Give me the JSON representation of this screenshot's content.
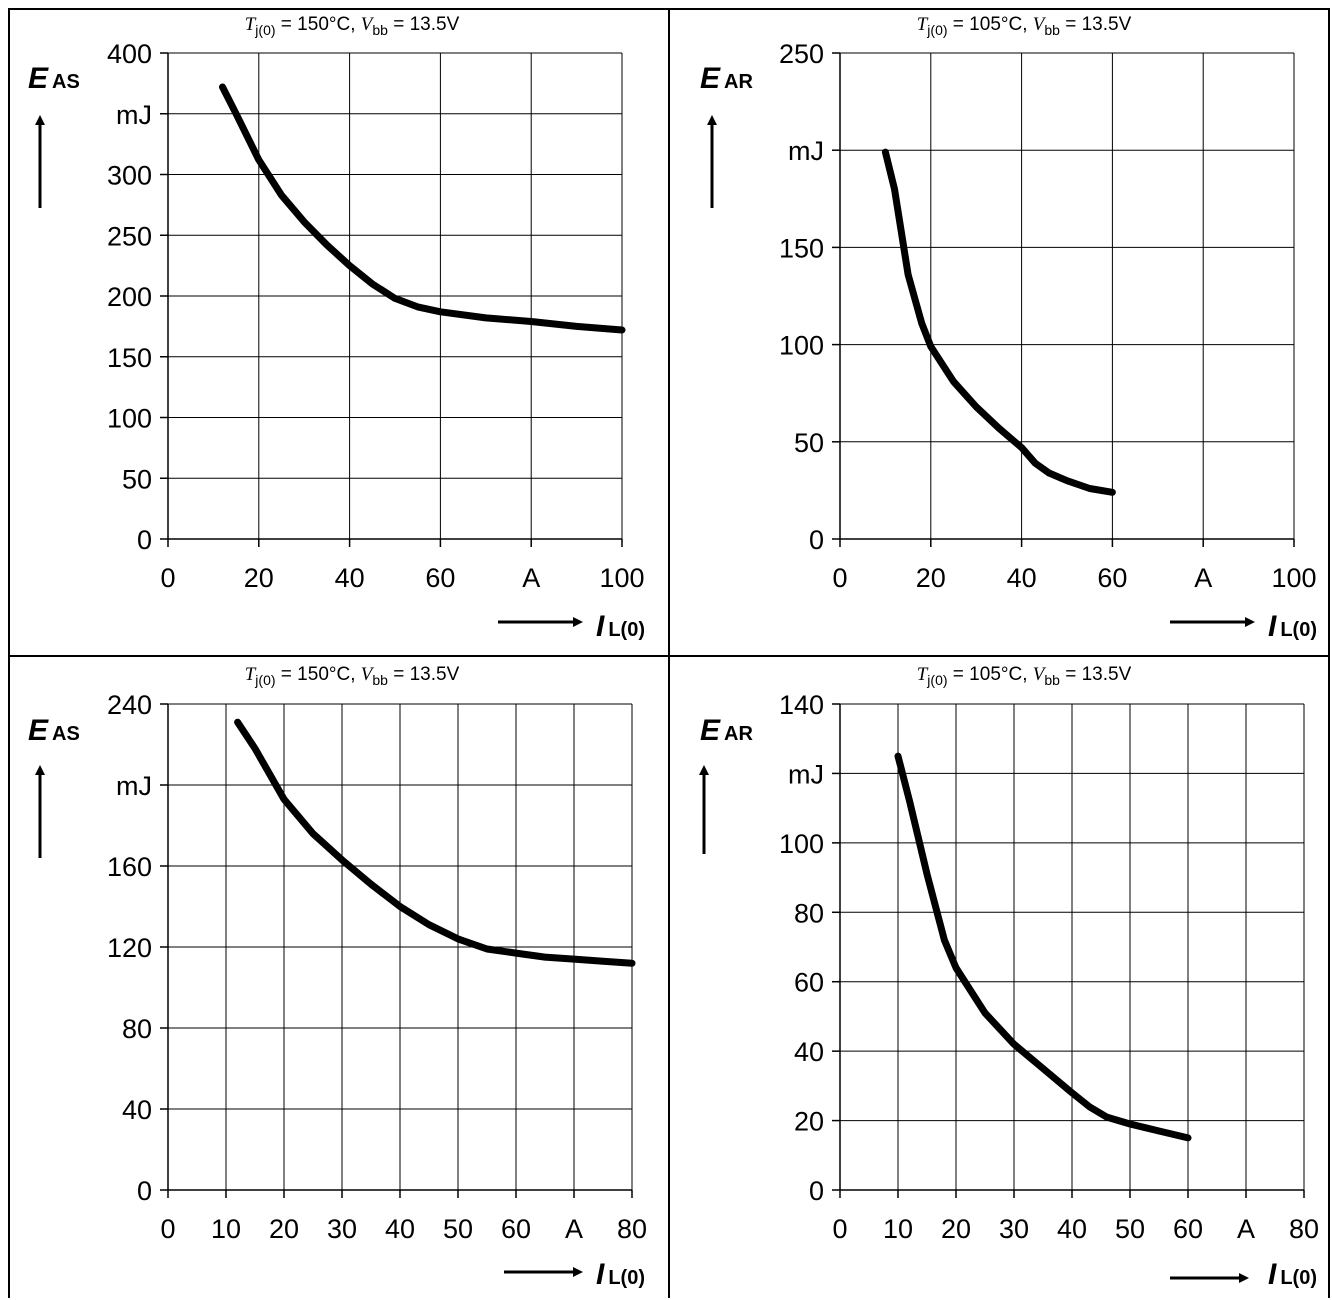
{
  "charts": [
    {
      "cond": {
        "T_sym": "T",
        "T_sub": "j(0)",
        "T_val": " = 150°C, ",
        "V_sym": "V",
        "V_sub": "bb",
        "V_val": " = 13.5V"
      },
      "ylabel": {
        "sym": "E",
        "sub": "AS"
      },
      "xlabel": {
        "sym": "I",
        "sub": "L(0)"
      }
    },
    {
      "cond": {
        "T_sym": "T",
        "T_sub": "j(0)",
        "T_val": " = 105°C, ",
        "V_sym": "V",
        "V_sub": "bb",
        "V_val": " = 13.5V"
      },
      "ylabel": {
        "sym": "E",
        "sub": "AR"
      },
      "xlabel": {
        "sym": "I",
        "sub": "L(0)"
      }
    },
    {
      "cond": {
        "T_sym": "T",
        "T_sub": "j(0)",
        "T_val": " = 150°C, ",
        "V_sym": "V",
        "V_sub": "bb",
        "V_val": " = 13.5V"
      },
      "ylabel": {
        "sym": "E",
        "sub": "AS"
      },
      "xlabel": {
        "sym": "I",
        "sub": "L(0)"
      }
    },
    {
      "cond": {
        "T_sym": "T",
        "T_sub": "j(0)",
        "T_val": " = 105°C, ",
        "V_sym": "V",
        "V_sub": "bb",
        "V_val": " = 13.5V"
      },
      "ylabel": {
        "sym": "E",
        "sub": "AR"
      },
      "xlabel": {
        "sym": "I",
        "sub": "L(0)"
      }
    }
  ],
  "chart_data": [
    {
      "type": "line",
      "title": "Tj(0) = 150°C, Vbb = 13.5V",
      "xlabel": "IL(0)",
      "ylabel": "EAS",
      "xlim": [
        0,
        100
      ],
      "ylim": [
        0,
        400
      ],
      "x_ticks": [
        "0",
        "20",
        "40",
        "60",
        "A",
        "100"
      ],
      "y_ticks": [
        "0",
        "50",
        "100",
        "150",
        "200",
        "250",
        "300",
        "mJ",
        "400"
      ],
      "grid": true,
      "series": [
        {
          "x": [
            12,
            15,
            20,
            25,
            30,
            35,
            40,
            45,
            50,
            55,
            60,
            70,
            80,
            90,
            100
          ],
          "y": [
            372,
            350,
            312,
            283,
            261,
            242,
            225,
            210,
            198,
            191,
            187,
            182,
            179,
            175,
            172
          ]
        }
      ]
    },
    {
      "type": "line",
      "title": "Tj(0) = 105°C, Vbb = 13.5V",
      "xlabel": "IL(0)",
      "ylabel": "EAR",
      "xlim": [
        0,
        100
      ],
      "ylim": [
        0,
        250
      ],
      "x_ticks": [
        "0",
        "20",
        "40",
        "60",
        "A",
        "100"
      ],
      "y_ticks": [
        "0",
        "50",
        "100",
        "150",
        "mJ",
        "250"
      ],
      "grid": true,
      "series": [
        {
          "x": [
            10,
            12,
            15,
            18,
            20,
            25,
            30,
            35,
            40,
            43,
            46,
            50,
            55,
            60
          ],
          "y": [
            199,
            180,
            136,
            111,
            99,
            81,
            68,
            57,
            47,
            39,
            34,
            30,
            26,
            24
          ]
        }
      ]
    },
    {
      "type": "line",
      "title": "Tj(0) = 150°C, Vbb = 13.5V",
      "xlabel": "IL(0)",
      "ylabel": "EAS",
      "xlim": [
        0,
        80
      ],
      "ylim": [
        0,
        240
      ],
      "x_ticks": [
        "0",
        "10",
        "20",
        "30",
        "40",
        "50",
        "60",
        "A",
        "80"
      ],
      "y_ticks": [
        "0",
        "40",
        "80",
        "120",
        "160",
        "mJ",
        "240"
      ],
      "grid": true,
      "series": [
        {
          "x": [
            12,
            15,
            20,
            25,
            30,
            35,
            40,
            45,
            50,
            55,
            60,
            65,
            70,
            75,
            80
          ],
          "y": [
            231,
            218,
            193,
            176,
            163,
            151,
            140,
            131,
            124,
            119,
            117,
            115,
            114,
            113,
            112
          ]
        }
      ]
    },
    {
      "type": "line",
      "title": "Tj(0) = 105°C, Vbb = 13.5V",
      "xlabel": "IL(0)",
      "ylabel": "EAR",
      "xlim": [
        0,
        80
      ],
      "ylim": [
        0,
        140
      ],
      "x_ticks": [
        "0",
        "10",
        "20",
        "30",
        "40",
        "50",
        "60",
        "A",
        "80"
      ],
      "y_ticks": [
        "0",
        "20",
        "40",
        "60",
        "80",
        "100",
        "mJ",
        "140"
      ],
      "grid": true,
      "series": [
        {
          "x": [
            10,
            12,
            15,
            18,
            20,
            25,
            30,
            35,
            40,
            43,
            46,
            50,
            55,
            60
          ],
          "y": [
            125,
            112,
            91,
            72,
            64,
            51,
            42,
            35,
            28,
            24,
            21,
            19,
            17,
            15
          ]
        }
      ]
    }
  ]
}
